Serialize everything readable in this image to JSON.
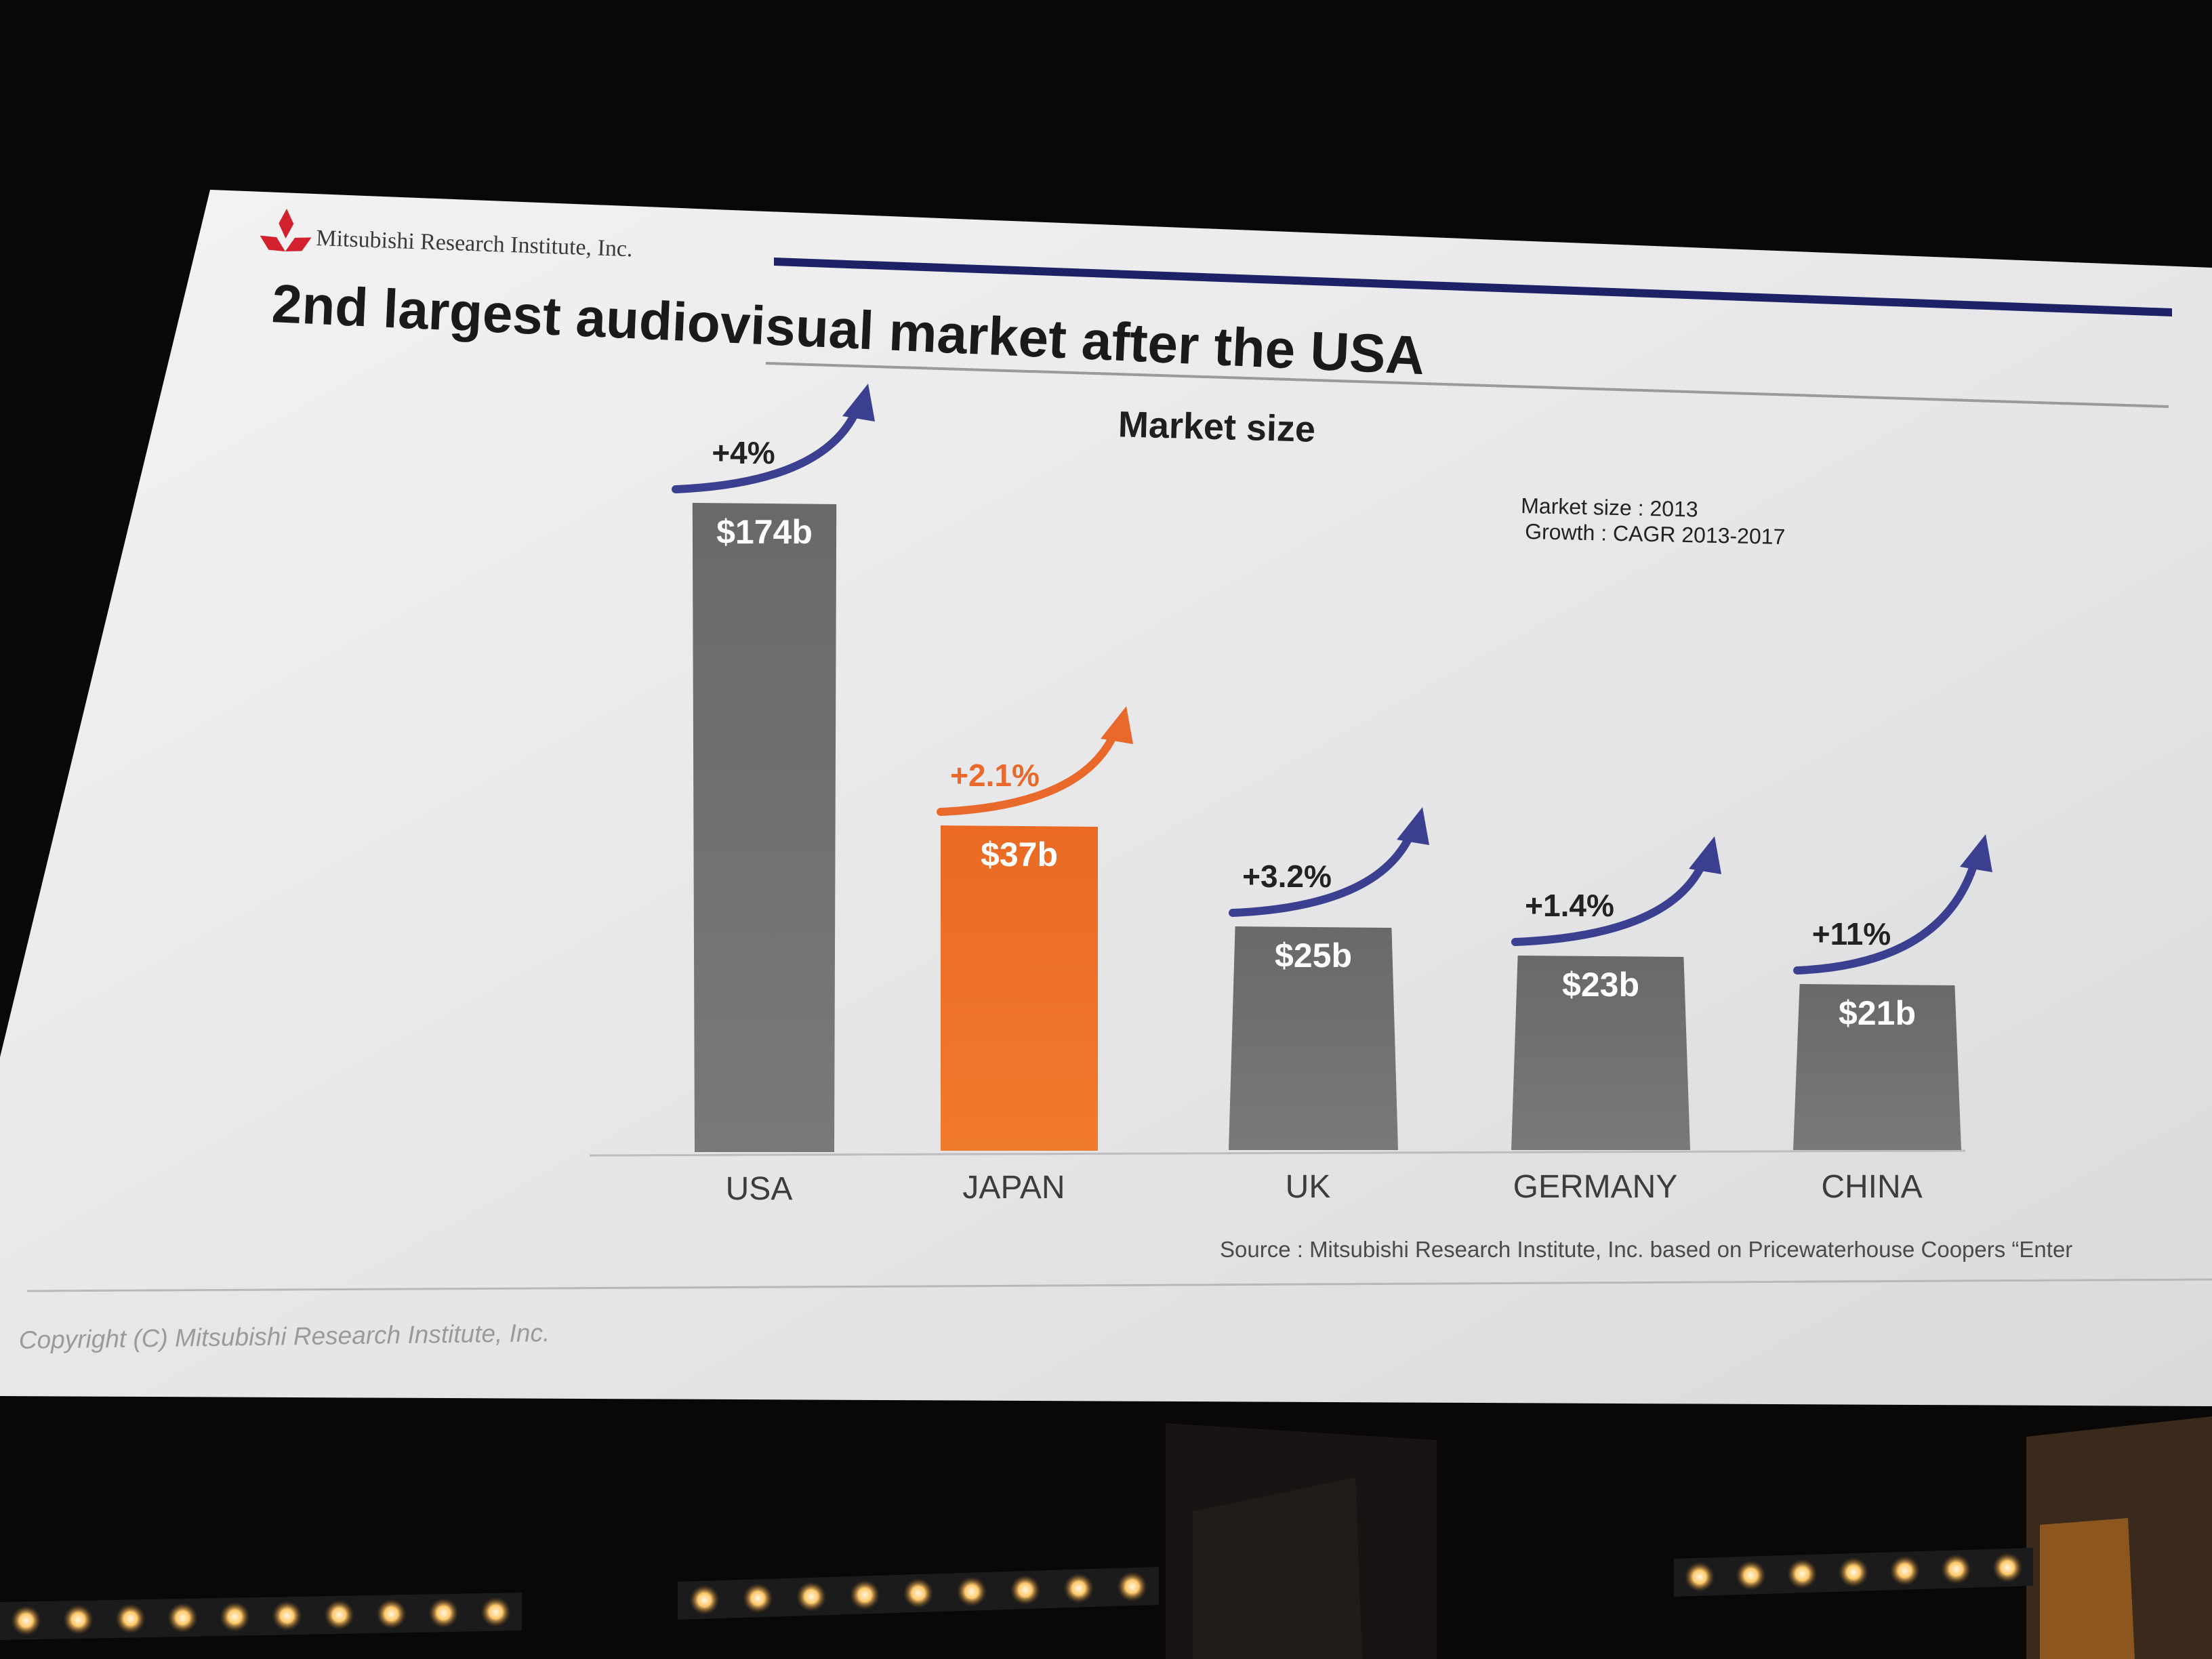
{
  "slide": {
    "company": "Mitsubishi Research Institute, Inc.",
    "title": "2nd largest audiovisual market after the USA",
    "note_line1": "Market size : 2013",
    "note_line2": "Growth : CAGR 2013-2017",
    "source": "Source : Mitsubishi Research Institute, Inc. based on Pricewaterhouse Coopers “Enter",
    "copyright": "Copyright (C) Mitsubishi Research Institute, Inc."
  },
  "icons": {
    "logo": "three-diamond-logo-icon",
    "growth_arrow": "curved-arrow-up-icon"
  },
  "colors": {
    "accent": "#e8692a",
    "bar": "#6e6b6b",
    "arrow": "#3b3f8f",
    "rule": "#1d2266",
    "logo": "#d2202e"
  },
  "chart_data": {
    "type": "bar",
    "title": "Market size",
    "categories": [
      "USA",
      "JAPAN",
      "UK",
      "GERMANY",
      "CHINA"
    ],
    "values": [
      174,
      37,
      25,
      23,
      21
    ],
    "value_labels": [
      "$174b",
      "$37b",
      "$25b",
      "$23b",
      "$21b"
    ],
    "growth_labels": [
      "+4%",
      "+2.1%",
      "+3.2%",
      "+1.4%",
      "+11%"
    ],
    "growth": [
      4,
      2.1,
      3.2,
      1.4,
      11
    ],
    "highlight": "JAPAN",
    "xlabel": "",
    "ylabel": "",
    "ylim": [
      0,
      174
    ]
  }
}
